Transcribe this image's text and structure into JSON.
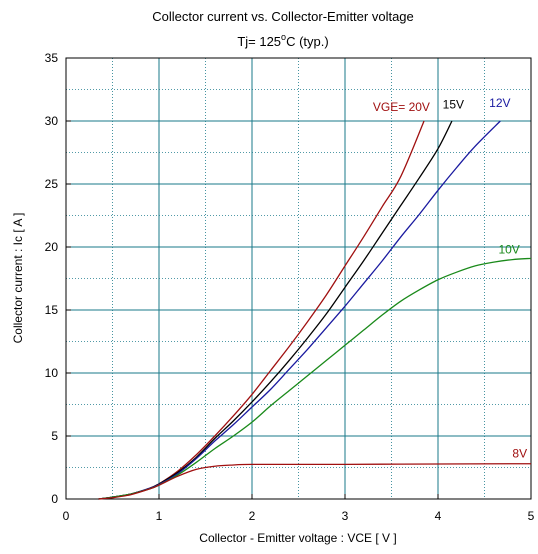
{
  "chart_data": {
    "type": "line",
    "title": "Collector current  vs.  Collector-Emitter voltage",
    "subtitle_prefix": "Tj= 125",
    "subtitle_degree": "o",
    "subtitle_suffix": "C  (typ.)",
    "xlabel": "Collector - Emitter voltage  :  VCE  [ V ]",
    "ylabel": "Collector current  :  Ic  [ A ]",
    "xlim": [
      0,
      5
    ],
    "ylim": [
      0,
      35
    ],
    "xticks": [
      0,
      1,
      2,
      3,
      4,
      5
    ],
    "yticks": [
      0,
      5,
      10,
      15,
      20,
      25,
      30,
      35
    ],
    "x_minor_step": 0.5,
    "y_minor_step": 2.5,
    "grid": true,
    "series": [
      {
        "name": "VGE= 20V",
        "color": "#a01010",
        "points": [
          [
            0.35,
            0
          ],
          [
            0.5,
            0.15
          ],
          [
            0.7,
            0.4
          ],
          [
            0.9,
            0.85
          ],
          [
            1.0,
            1.2
          ],
          [
            1.2,
            2.2
          ],
          [
            1.4,
            3.5
          ],
          [
            1.6,
            5.0
          ],
          [
            1.8,
            6.6
          ],
          [
            2.0,
            8.3
          ],
          [
            2.2,
            10.2
          ],
          [
            2.4,
            12.1
          ],
          [
            2.6,
            14.1
          ],
          [
            2.8,
            16.2
          ],
          [
            3.0,
            18.5
          ],
          [
            3.2,
            20.8
          ],
          [
            3.4,
            23.2
          ],
          [
            3.6,
            25.6
          ],
          [
            3.85,
            30.0
          ]
        ]
      },
      {
        "name": "15V",
        "color": "#000000",
        "points": [
          [
            0.35,
            0
          ],
          [
            0.5,
            0.15
          ],
          [
            0.7,
            0.4
          ],
          [
            0.9,
            0.85
          ],
          [
            1.0,
            1.2
          ],
          [
            1.2,
            2.1
          ],
          [
            1.4,
            3.3
          ],
          [
            1.6,
            4.8
          ],
          [
            1.8,
            6.2
          ],
          [
            2.0,
            7.7
          ],
          [
            2.2,
            9.3
          ],
          [
            2.4,
            11.0
          ],
          [
            2.6,
            12.8
          ],
          [
            2.8,
            14.7
          ],
          [
            3.0,
            16.8
          ],
          [
            3.2,
            18.9
          ],
          [
            3.4,
            21.1
          ],
          [
            3.6,
            23.3
          ],
          [
            3.8,
            25.5
          ],
          [
            4.0,
            27.8
          ],
          [
            4.15,
            30.0
          ]
        ]
      },
      {
        "name": "12V",
        "color": "#1a1aa0",
        "points": [
          [
            0.35,
            0
          ],
          [
            0.5,
            0.15
          ],
          [
            0.7,
            0.4
          ],
          [
            0.9,
            0.85
          ],
          [
            1.0,
            1.15
          ],
          [
            1.2,
            2.0
          ],
          [
            1.4,
            3.2
          ],
          [
            1.6,
            4.6
          ],
          [
            1.8,
            5.9
          ],
          [
            2.0,
            7.3
          ],
          [
            2.2,
            8.7
          ],
          [
            2.4,
            10.3
          ],
          [
            2.6,
            11.9
          ],
          [
            2.8,
            13.6
          ],
          [
            3.0,
            15.3
          ],
          [
            3.2,
            17.1
          ],
          [
            3.4,
            18.9
          ],
          [
            3.6,
            20.8
          ],
          [
            3.8,
            22.6
          ],
          [
            4.0,
            24.5
          ],
          [
            4.2,
            26.3
          ],
          [
            4.4,
            28.0
          ],
          [
            4.67,
            30.0
          ]
        ]
      },
      {
        "name": "10V",
        "color": "#1a8a1a",
        "points": [
          [
            0.35,
            0
          ],
          [
            0.5,
            0.15
          ],
          [
            0.7,
            0.4
          ],
          [
            0.9,
            0.8
          ],
          [
            1.0,
            1.1
          ],
          [
            1.2,
            1.9
          ],
          [
            1.4,
            2.9
          ],
          [
            1.6,
            4.0
          ],
          [
            1.8,
            5.0
          ],
          [
            2.0,
            6.1
          ],
          [
            2.2,
            7.4
          ],
          [
            2.4,
            8.6
          ],
          [
            2.6,
            9.8
          ],
          [
            2.8,
            11.0
          ],
          [
            3.0,
            12.2
          ],
          [
            3.2,
            13.4
          ],
          [
            3.4,
            14.6
          ],
          [
            3.6,
            15.7
          ],
          [
            3.8,
            16.6
          ],
          [
            4.0,
            17.4
          ],
          [
            4.2,
            18.0
          ],
          [
            4.4,
            18.5
          ],
          [
            4.6,
            18.8
          ],
          [
            4.8,
            19.0
          ],
          [
            5.0,
            19.1
          ]
        ]
      },
      {
        "name": "8V",
        "color": "#a01010",
        "points": [
          [
            0.35,
            0
          ],
          [
            0.5,
            0.1
          ],
          [
            0.7,
            0.35
          ],
          [
            0.9,
            0.8
          ],
          [
            1.0,
            1.1
          ],
          [
            1.2,
            1.8
          ],
          [
            1.4,
            2.35
          ],
          [
            1.6,
            2.6
          ],
          [
            1.8,
            2.7
          ],
          [
            2.0,
            2.75
          ],
          [
            3.0,
            2.75
          ],
          [
            4.0,
            2.78
          ],
          [
            5.0,
            2.8
          ]
        ]
      }
    ],
    "annotations": [
      {
        "text": "VGE= 20V",
        "color": "#a01010",
        "x": 3.3,
        "y": 30.8
      },
      {
        "text": "15V",
        "color": "#000000",
        "x": 4.05,
        "y": 31.0
      },
      {
        "text": "12V",
        "color": "#1a1aa0",
        "x": 4.55,
        "y": 31.1
      },
      {
        "text": "10V",
        "color": "#1a8a1a",
        "x": 4.65,
        "y": 19.5
      },
      {
        "text": "8V",
        "color": "#a01010",
        "x": 4.8,
        "y": 3.3
      }
    ],
    "grid_color": "#1a7a8a",
    "plot_bg": "#ffffff"
  }
}
